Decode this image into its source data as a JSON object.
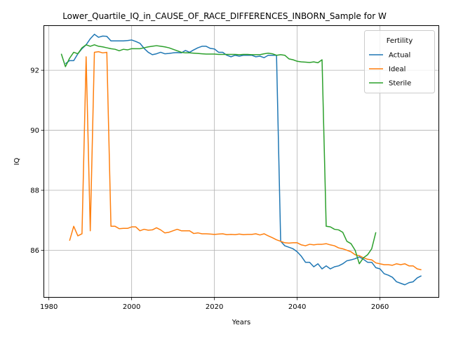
{
  "chart_data": {
    "type": "line",
    "title": "Lower_Quartile_IQ_in_CAUSE_OF_RACE_DIFFERENCES_INBORN_Sample for W",
    "xlabel": "Years",
    "ylabel": "IQ",
    "xlim": [
      1978.7,
      2074.3
    ],
    "ylim": [
      84.42,
      93.5
    ],
    "xticks": [
      1980,
      2000,
      2020,
      2040,
      2060
    ],
    "yticks": [
      86,
      88,
      90,
      92
    ],
    "grid": true,
    "legend": {
      "title": "Fertility",
      "location": "upper right"
    },
    "series": [
      {
        "name": "Actual",
        "color": "#1f77b4",
        "points": [
          [
            1984,
            92.22
          ],
          [
            1985,
            92.32
          ],
          [
            1986,
            92.32
          ],
          [
            1987,
            92.55
          ],
          [
            1988,
            92.72
          ],
          [
            1989,
            92.85
          ],
          [
            1990,
            93.05
          ],
          [
            1991,
            93.2
          ],
          [
            1992,
            93.1
          ],
          [
            1993,
            93.14
          ],
          [
            1994,
            93.13
          ],
          [
            1995,
            92.98
          ],
          [
            1996,
            92.98
          ],
          [
            1997,
            92.98
          ],
          [
            1998,
            92.98
          ],
          [
            1999,
            92.99
          ],
          [
            2000,
            93.01
          ],
          [
            2001,
            92.96
          ],
          [
            2002,
            92.9
          ],
          [
            2003,
            92.73
          ],
          [
            2004,
            92.6
          ],
          [
            2005,
            92.52
          ],
          [
            2006,
            92.55
          ],
          [
            2007,
            92.6
          ],
          [
            2008,
            92.55
          ],
          [
            2009,
            92.56
          ],
          [
            2010,
            92.58
          ],
          [
            2011,
            92.59
          ],
          [
            2012,
            92.58
          ],
          [
            2013,
            92.66
          ],
          [
            2014,
            92.6
          ],
          [
            2015,
            92.68
          ],
          [
            2016,
            92.75
          ],
          [
            2017,
            92.8
          ],
          [
            2018,
            92.8
          ],
          [
            2019,
            92.73
          ],
          [
            2020,
            92.71
          ],
          [
            2021,
            92.6
          ],
          [
            2022,
            92.6
          ],
          [
            2023,
            92.5
          ],
          [
            2024,
            92.45
          ],
          [
            2025,
            92.5
          ],
          [
            2026,
            92.47
          ],
          [
            2027,
            92.5
          ],
          [
            2028,
            92.5
          ],
          [
            2029,
            92.5
          ],
          [
            2030,
            92.45
          ],
          [
            2031,
            92.47
          ],
          [
            2032,
            92.42
          ],
          [
            2033,
            92.5
          ],
          [
            2034,
            92.5
          ],
          [
            2035,
            92.5
          ],
          [
            2036,
            86.3
          ],
          [
            2037,
            86.15
          ],
          [
            2038,
            86.1
          ],
          [
            2039,
            86.05
          ],
          [
            2040,
            85.95
          ],
          [
            2041,
            85.8
          ],
          [
            2042,
            85.6
          ],
          [
            2043,
            85.6
          ],
          [
            2044,
            85.45
          ],
          [
            2045,
            85.55
          ],
          [
            2046,
            85.38
          ],
          [
            2047,
            85.48
          ],
          [
            2048,
            85.38
          ],
          [
            2049,
            85.45
          ],
          [
            2050,
            85.48
          ],
          [
            2051,
            85.55
          ],
          [
            2052,
            85.65
          ],
          [
            2053,
            85.68
          ],
          [
            2054,
            85.72
          ],
          [
            2055,
            85.78
          ],
          [
            2056,
            85.7
          ],
          [
            2057,
            85.6
          ],
          [
            2058,
            85.6
          ],
          [
            2059,
            85.42
          ],
          [
            2060,
            85.38
          ],
          [
            2061,
            85.22
          ],
          [
            2062,
            85.17
          ],
          [
            2063,
            85.1
          ],
          [
            2064,
            84.95
          ],
          [
            2065,
            84.9
          ],
          [
            2066,
            84.85
          ],
          [
            2067,
            84.92
          ],
          [
            2068,
            84.95
          ],
          [
            2069,
            85.08
          ],
          [
            2070,
            85.15
          ]
        ]
      },
      {
        "name": "Ideal",
        "color": "#ff7f0e",
        "points": [
          [
            1985,
            86.32
          ],
          [
            1986,
            86.8
          ],
          [
            1987,
            86.48
          ],
          [
            1988,
            86.55
          ],
          [
            1989,
            92.45
          ],
          [
            1990,
            86.65
          ],
          [
            1991,
            92.6
          ],
          [
            1992,
            92.62
          ],
          [
            1993,
            92.58
          ],
          [
            1994,
            92.6
          ],
          [
            1995,
            86.8
          ],
          [
            1996,
            86.8
          ],
          [
            1997,
            86.72
          ],
          [
            1998,
            86.73
          ],
          [
            1999,
            86.73
          ],
          [
            2000,
            86.78
          ],
          [
            2001,
            86.78
          ],
          [
            2002,
            86.65
          ],
          [
            2003,
            86.7
          ],
          [
            2004,
            86.67
          ],
          [
            2005,
            86.68
          ],
          [
            2006,
            86.75
          ],
          [
            2007,
            86.68
          ],
          [
            2008,
            86.58
          ],
          [
            2009,
            86.6
          ],
          [
            2010,
            86.65
          ],
          [
            2011,
            86.7
          ],
          [
            2012,
            86.65
          ],
          [
            2013,
            86.65
          ],
          [
            2014,
            86.65
          ],
          [
            2015,
            86.56
          ],
          [
            2016,
            86.58
          ],
          [
            2017,
            86.55
          ],
          [
            2018,
            86.55
          ],
          [
            2019,
            86.54
          ],
          [
            2020,
            86.53
          ],
          [
            2021,
            86.54
          ],
          [
            2022,
            86.55
          ],
          [
            2023,
            86.52
          ],
          [
            2024,
            86.53
          ],
          [
            2025,
            86.52
          ],
          [
            2026,
            86.54
          ],
          [
            2027,
            86.52
          ],
          [
            2028,
            86.53
          ],
          [
            2029,
            86.53
          ],
          [
            2030,
            86.55
          ],
          [
            2031,
            86.51
          ],
          [
            2032,
            86.55
          ],
          [
            2033,
            86.48
          ],
          [
            2034,
            86.42
          ],
          [
            2035,
            86.35
          ],
          [
            2036,
            86.3
          ],
          [
            2037,
            86.25
          ],
          [
            2038,
            86.24
          ],
          [
            2039,
            86.25
          ],
          [
            2040,
            86.25
          ],
          [
            2041,
            86.18
          ],
          [
            2042,
            86.15
          ],
          [
            2043,
            86.2
          ],
          [
            2044,
            86.18
          ],
          [
            2045,
            86.2
          ],
          [
            2046,
            86.2
          ],
          [
            2047,
            86.22
          ],
          [
            2048,
            86.18
          ],
          [
            2049,
            86.15
          ],
          [
            2050,
            86.08
          ],
          [
            2051,
            86.05
          ],
          [
            2052,
            86.0
          ],
          [
            2053,
            85.95
          ],
          [
            2054,
            85.85
          ],
          [
            2055,
            85.82
          ],
          [
            2056,
            85.75
          ],
          [
            2057,
            85.7
          ],
          [
            2058,
            85.68
          ],
          [
            2059,
            85.58
          ],
          [
            2060,
            85.55
          ],
          [
            2061,
            85.52
          ],
          [
            2062,
            85.52
          ],
          [
            2063,
            85.5
          ],
          [
            2064,
            85.55
          ],
          [
            2065,
            85.52
          ],
          [
            2066,
            85.55
          ],
          [
            2067,
            85.48
          ],
          [
            2068,
            85.48
          ],
          [
            2069,
            85.38
          ],
          [
            2070,
            85.35
          ]
        ]
      },
      {
        "name": "Sterile",
        "color": "#2ca02c",
        "points": [
          [
            1983,
            92.55
          ],
          [
            1984,
            92.12
          ],
          [
            1985,
            92.4
          ],
          [
            1986,
            92.6
          ],
          [
            1987,
            92.55
          ],
          [
            1988,
            92.75
          ],
          [
            1989,
            92.85
          ],
          [
            1990,
            92.8
          ],
          [
            1991,
            92.85
          ],
          [
            1992,
            92.8
          ],
          [
            1993,
            92.78
          ],
          [
            1994,
            92.75
          ],
          [
            1995,
            92.72
          ],
          [
            1996,
            92.7
          ],
          [
            1997,
            92.65
          ],
          [
            1998,
            92.7
          ],
          [
            1999,
            92.68
          ],
          [
            2000,
            92.72
          ],
          [
            2001,
            92.72
          ],
          [
            2002,
            92.72
          ],
          [
            2003,
            92.75
          ],
          [
            2004,
            92.78
          ],
          [
            2005,
            92.8
          ],
          [
            2006,
            92.82
          ],
          [
            2007,
            92.8
          ],
          [
            2008,
            92.78
          ],
          [
            2009,
            92.75
          ],
          [
            2010,
            92.7
          ],
          [
            2011,
            92.65
          ],
          [
            2012,
            92.6
          ],
          [
            2013,
            92.58
          ],
          [
            2014,
            92.58
          ],
          [
            2015,
            92.57
          ],
          [
            2016,
            92.56
          ],
          [
            2017,
            92.55
          ],
          [
            2018,
            92.54
          ],
          [
            2019,
            92.54
          ],
          [
            2020,
            92.54
          ],
          [
            2021,
            92.53
          ],
          [
            2022,
            92.53
          ],
          [
            2023,
            92.53
          ],
          [
            2024,
            92.53
          ],
          [
            2025,
            92.53
          ],
          [
            2026,
            92.52
          ],
          [
            2027,
            92.53
          ],
          [
            2028,
            92.53
          ],
          [
            2029,
            92.52
          ],
          [
            2030,
            92.52
          ],
          [
            2031,
            92.52
          ],
          [
            2032,
            92.55
          ],
          [
            2033,
            92.57
          ],
          [
            2034,
            92.55
          ],
          [
            2035,
            92.5
          ],
          [
            2036,
            92.52
          ],
          [
            2037,
            92.5
          ],
          [
            2038,
            92.38
          ],
          [
            2039,
            92.35
          ],
          [
            2040,
            92.3
          ],
          [
            2041,
            92.28
          ],
          [
            2042,
            92.27
          ],
          [
            2043,
            92.26
          ],
          [
            2044,
            92.28
          ],
          [
            2045,
            92.25
          ],
          [
            2046,
            92.35
          ],
          [
            2047,
            86.8
          ],
          [
            2048,
            86.78
          ],
          [
            2049,
            86.7
          ],
          [
            2050,
            86.68
          ],
          [
            2051,
            86.6
          ],
          [
            2052,
            86.3
          ],
          [
            2053,
            86.22
          ],
          [
            2054,
            86.0
          ],
          [
            2055,
            85.55
          ],
          [
            2056,
            85.75
          ],
          [
            2057,
            85.85
          ],
          [
            2058,
            86.05
          ],
          [
            2059,
            86.6
          ]
        ]
      }
    ]
  }
}
